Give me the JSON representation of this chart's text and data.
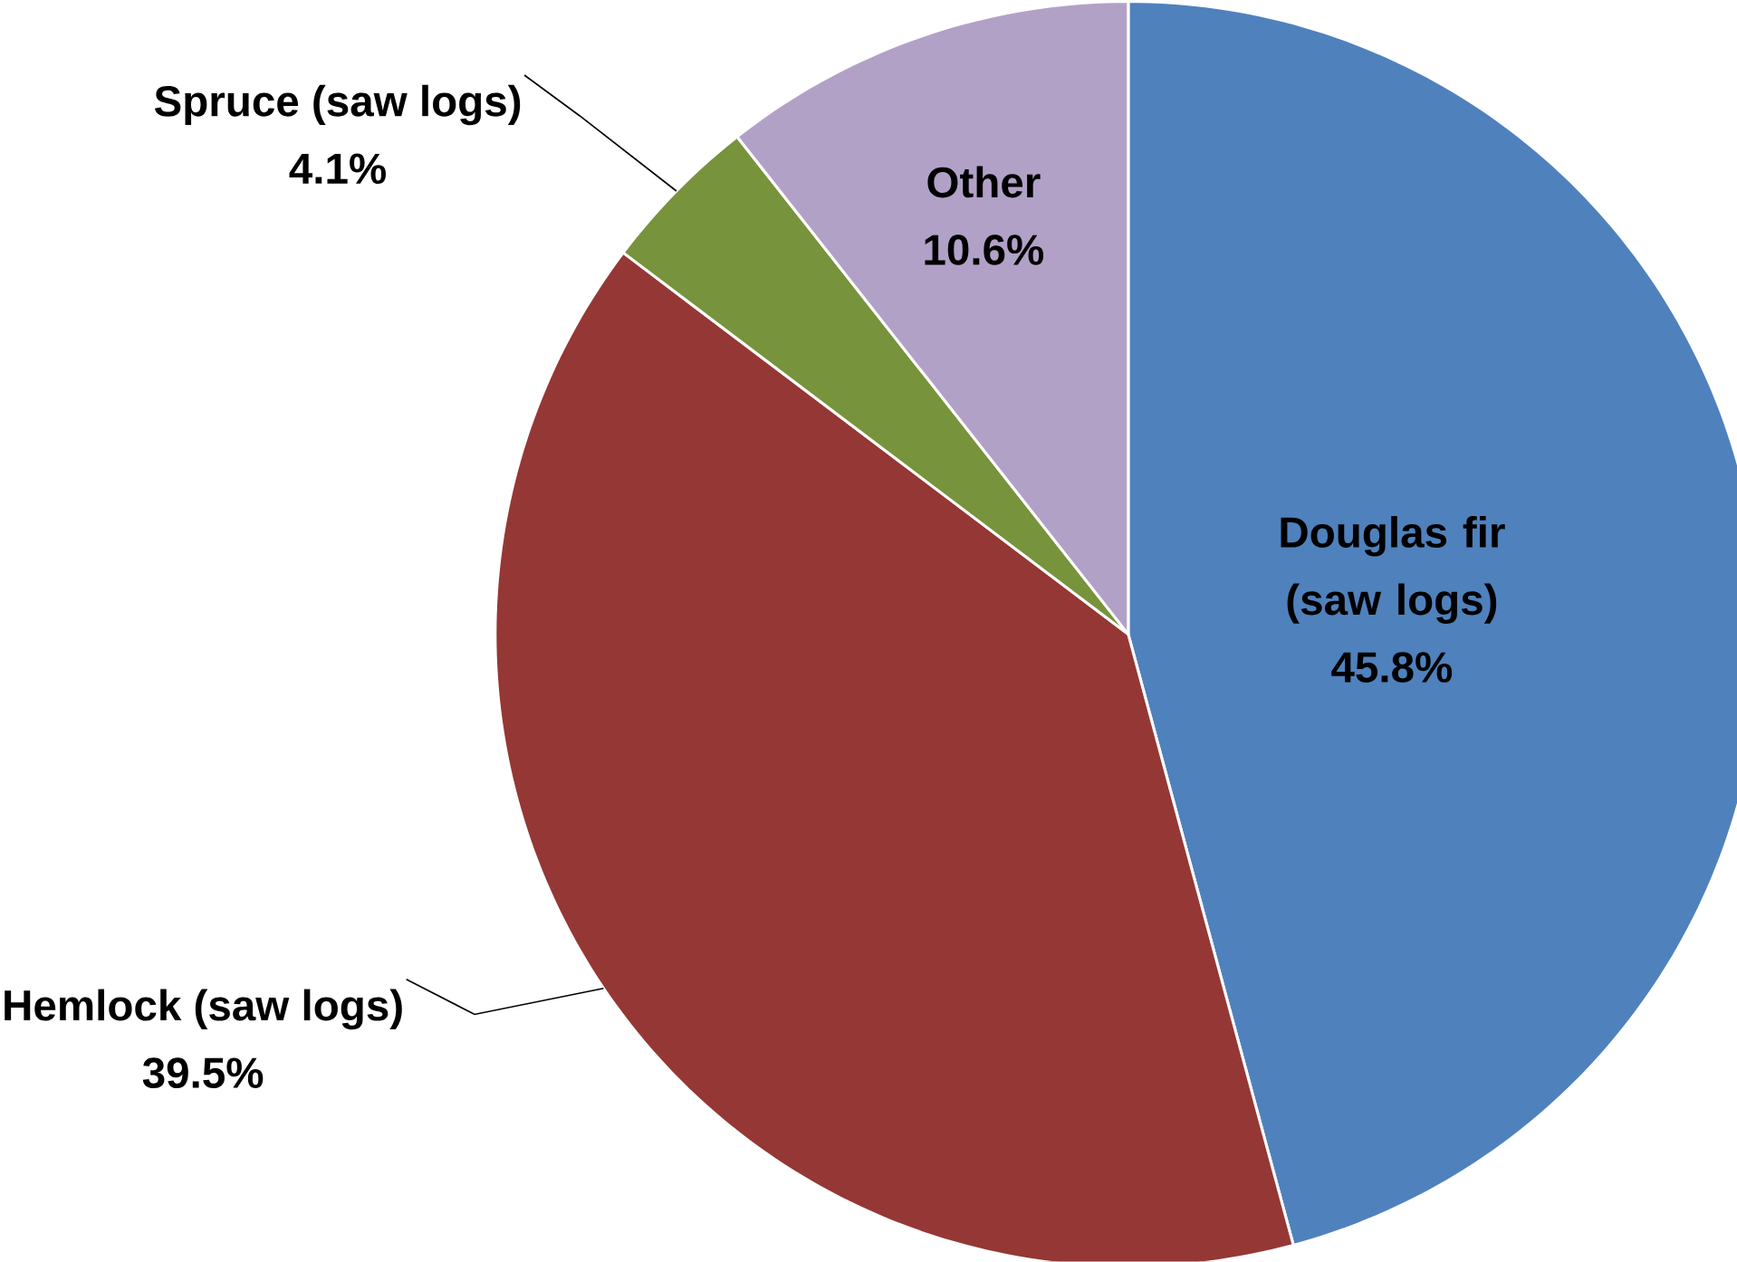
{
  "chart_data": {
    "type": "pie",
    "categories": [
      "Douglas fir (saw logs)",
      "Hemlock (saw logs)",
      "Spruce (saw logs)",
      "Other"
    ],
    "values": [
      45.8,
      39.5,
      4.1,
      10.6
    ],
    "value_labels": [
      "45.8%",
      "39.5%",
      "4.1%",
      "10.6%"
    ],
    "colors": [
      "#4f81bd",
      "#953735",
      "#77933c",
      "#b2a1c7"
    ]
  }
}
